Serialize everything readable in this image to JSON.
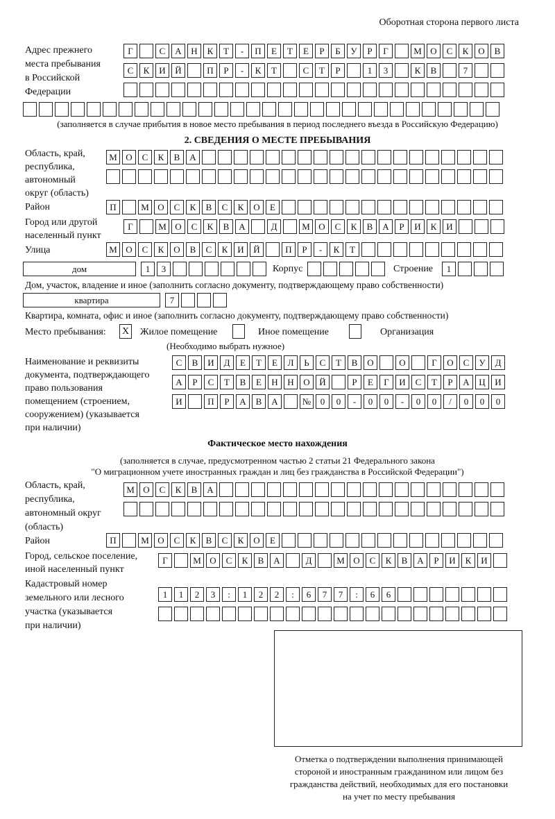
{
  "header": "Оборотная сторона первого листа",
  "prev_address": {
    "label": [
      "Адрес прежнего",
      "места пребывания",
      "в Российской",
      "Федерации"
    ],
    "rows": [
      "Г САНКТ-ПЕТЕРБУРГ МОСКОВ",
      "СКИЙ ПР-КТ СТР 13 КВ 7",
      "",
      ""
    ],
    "note": "(заполняется в случае прибытия в новое место пребывания в период последнего въезда в Российскую Федерацию)"
  },
  "section2": {
    "title": "2. СВЕДЕНИЯ О МЕСТЕ ПРЕБЫВАНИЯ",
    "region_label": [
      "Область, край,",
      "республика,",
      "автономный",
      "округ (область)"
    ],
    "region_rows": [
      "МОСКВА",
      ""
    ],
    "district_label": "Район",
    "district": "П МОСКВСКОЕ",
    "city_label": [
      "Город или другой",
      "населенный пункт"
    ],
    "city": "Г МОСКВА Д МОСКВАРИКИ",
    "street_label": "Улица",
    "street": "МОСКОВСКИЙ ПР-КТ",
    "house_type": "дом",
    "house": "13",
    "korpus_label": "Корпус",
    "korpus": "",
    "building_label": "Строение",
    "building": "1",
    "house_note": "Дом, участок, владение и иное (заполнить согласно документу, подтверждающему право собственности)",
    "flat_type": "квартира",
    "flat": "7",
    "flat_note": "Квартира, комната, офис и иное (заполнить согласно документу, подтверждающему право собственности)",
    "stay_label": "Место пребывания:",
    "stay_options": [
      {
        "label": "Жилое помещение",
        "mark": "X"
      },
      {
        "label": "Иное помещение",
        "mark": ""
      },
      {
        "label": "Организация",
        "mark": ""
      }
    ],
    "stay_note": "(Необходимо выбрать нужное)",
    "doc_label": [
      "Наименование и реквизиты",
      "документа, подтверждающего",
      "право пользования",
      "помещением (строением,",
      "сооружением) (указывается",
      "при наличии)"
    ],
    "doc_rows": [
      "СВИДЕТЕЛЬСТВО О ГОСУД",
      "АРСТВЕННОЙ РЕГИСТРАЦИ",
      "И ПРАВА №00-00-00/000"
    ]
  },
  "actual": {
    "title": "Фактическое место нахождения",
    "subtitle": [
      "(заполняется в случае, предусмотренном частью 2 статьи 21 Федерального закона",
      "\"О миграционном учете иностранных граждан и лиц без гражданства в Российской Федерации\")"
    ],
    "region_label": [
      "Область, край,",
      "республика,",
      "автономный округ",
      "(область)"
    ],
    "region_rows": [
      "МОСКВА",
      ""
    ],
    "district_label": "Район",
    "district": "П МОСКВСКОЕ",
    "city_label": [
      "Город, сельское поселение,",
      "иной населенный пункт"
    ],
    "city": "Г МОСКВА Д МОСКВАРИКИ",
    "cadastral_label": [
      "Кадастровый номер",
      "земельного или лесного",
      "участка (указывается",
      "при наличии)"
    ],
    "cadastral_rows": [
      "1123:122:677:66",
      ""
    ],
    "stamp_caption": [
      "Отметка о подтверждении выполнения принимающей",
      "стороной и иностранным гражданином или лицом без",
      "гражданства действий, необходимых для его постановки",
      "на учет по месту пребывания"
    ]
  }
}
